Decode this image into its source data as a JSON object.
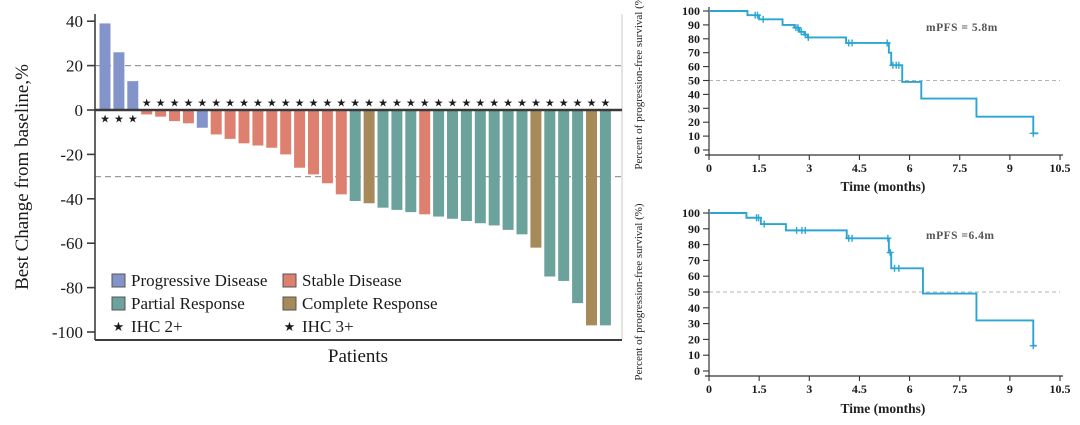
{
  "figure": {
    "background": "#ffffff",
    "colors": {
      "progressive_disease": "#8394CB",
      "stable_disease": "#DE8070",
      "partial_response": "#6BA29B",
      "complete_response": "#A78A59",
      "ihc2_star": "#0E8A3C",
      "ihc3_star": "#FFA81C",
      "km_line": "#2BA6D2",
      "axis": "#3d3d3d",
      "dashed_ref": "#999999"
    }
  },
  "chart_data": [
    {
      "type": "bar",
      "subtype": "waterfall",
      "title": "",
      "xlabel": "Patients",
      "ylabel": "Best Change from baseline,%",
      "ylim": [
        -100,
        45
      ],
      "yticks": [
        40,
        20,
        0,
        -20,
        -40,
        -60,
        -80,
        -100
      ],
      "reference_lines": [
        20,
        -30
      ],
      "grid": "dashed-reference-only",
      "legend_position": "inside-bottom-left",
      "legend": [
        {
          "label": "Progressive Disease",
          "swatch": "progressive_disease",
          "marker": "square"
        },
        {
          "label": "Stable Disease",
          "swatch": "stable_disease",
          "marker": "square"
        },
        {
          "label": "Partial Response",
          "swatch": "partial_response",
          "marker": "square"
        },
        {
          "label": "Complete Response",
          "swatch": "complete_response",
          "marker": "square"
        },
        {
          "label": "IHC 2+",
          "swatch": "ihc2_star",
          "marker": "star"
        },
        {
          "label": "IHC 3+",
          "swatch": "ihc3_star",
          "marker": "star"
        }
      ],
      "bars": [
        {
          "value": 39,
          "response": "progressive_disease",
          "ihc": "3+"
        },
        {
          "value": 26,
          "response": "progressive_disease",
          "ihc": "2+"
        },
        {
          "value": 13,
          "response": "progressive_disease",
          "ihc": "2+"
        },
        {
          "value": -2,
          "response": "stable_disease",
          "ihc": "2+"
        },
        {
          "value": -3,
          "response": "stable_disease",
          "ihc": "3+"
        },
        {
          "value": -5,
          "response": "stable_disease",
          "ihc": "3+"
        },
        {
          "value": -6,
          "response": "stable_disease",
          "ihc": "2+"
        },
        {
          "value": -8,
          "response": "progressive_disease",
          "ihc": "2+"
        },
        {
          "value": -11,
          "response": "stable_disease",
          "ihc": "2+"
        },
        {
          "value": -13,
          "response": "stable_disease",
          "ihc": "2+"
        },
        {
          "value": -15,
          "response": "stable_disease",
          "ihc": "2+"
        },
        {
          "value": -16,
          "response": "stable_disease",
          "ihc": "2+"
        },
        {
          "value": -17,
          "response": "stable_disease",
          "ihc": "2+"
        },
        {
          "value": -20,
          "response": "stable_disease",
          "ihc": "2+"
        },
        {
          "value": -26,
          "response": "stable_disease",
          "ihc": "2+"
        },
        {
          "value": -29,
          "response": "stable_disease",
          "ihc": "2+"
        },
        {
          "value": -33,
          "response": "stable_disease",
          "ihc": "2+"
        },
        {
          "value": -38,
          "response": "stable_disease",
          "ihc": "2+"
        },
        {
          "value": -41,
          "response": "partial_response",
          "ihc": "3+"
        },
        {
          "value": -42,
          "response": "complete_response",
          "ihc": "2+"
        },
        {
          "value": -44,
          "response": "partial_response",
          "ihc": "2+"
        },
        {
          "value": -45,
          "response": "partial_response",
          "ihc": "2+"
        },
        {
          "value": -46,
          "response": "partial_response",
          "ihc": "2+"
        },
        {
          "value": -47,
          "response": "stable_disease",
          "ihc": "2+"
        },
        {
          "value": -48,
          "response": "partial_response",
          "ihc": "2+"
        },
        {
          "value": -49,
          "response": "partial_response",
          "ihc": "2+"
        },
        {
          "value": -50,
          "response": "partial_response",
          "ihc": "2+"
        },
        {
          "value": -51,
          "response": "partial_response",
          "ihc": "3+"
        },
        {
          "value": -52,
          "response": "partial_response",
          "ihc": "3+"
        },
        {
          "value": -54,
          "response": "partial_response",
          "ihc": "2+"
        },
        {
          "value": -56,
          "response": "partial_response",
          "ihc": "2+"
        },
        {
          "value": -62,
          "response": "complete_response",
          "ihc": "2+"
        },
        {
          "value": -75,
          "response": "partial_response",
          "ihc": "3+"
        },
        {
          "value": -77,
          "response": "partial_response",
          "ihc": "3+"
        },
        {
          "value": -87,
          "response": "partial_response",
          "ihc": "2+"
        },
        {
          "value": -97,
          "response": "complete_response",
          "ihc": "2+"
        },
        {
          "value": -97,
          "response": "partial_response",
          "ihc": "3+"
        }
      ]
    },
    {
      "type": "line",
      "subtype": "kaplan-meier",
      "annotation": "mPFS = 5.8m",
      "xlabel": "Time (months)",
      "ylabel": "Percent of progression-free survival (%)",
      "xticks": [
        0,
        1.5,
        3,
        4.5,
        6,
        7.5,
        9,
        10.5
      ],
      "yticks": [
        0,
        10,
        20,
        30,
        40,
        50,
        60,
        70,
        80,
        90,
        100
      ],
      "xlim": [
        0,
        10.5
      ],
      "ylim": [
        0,
        100
      ],
      "median_reference": 50,
      "end_x": 9.85,
      "steps": [
        [
          0,
          100
        ],
        [
          1.15,
          97
        ],
        [
          1.5,
          94
        ],
        [
          2.2,
          90
        ],
        [
          2.55,
          88
        ],
        [
          2.7,
          85
        ],
        [
          2.85,
          83
        ],
        [
          2.95,
          81
        ],
        [
          4.1,
          77
        ],
        [
          5.38,
          70
        ],
        [
          5.45,
          61
        ],
        [
          5.78,
          49
        ],
        [
          6.35,
          37
        ],
        [
          8.0,
          24
        ],
        [
          9.7,
          12
        ]
      ],
      "censors": [
        [
          1.38,
          97
        ],
        [
          1.45,
          97
        ],
        [
          1.62,
          94
        ],
        [
          2.6,
          88
        ],
        [
          2.66,
          88
        ],
        [
          2.76,
          85
        ],
        [
          2.88,
          83
        ],
        [
          2.97,
          81
        ],
        [
          4.18,
          77
        ],
        [
          4.28,
          77
        ],
        [
          5.33,
          77
        ],
        [
          5.5,
          61
        ],
        [
          5.6,
          61
        ],
        [
          5.68,
          61
        ],
        [
          9.7,
          12
        ]
      ]
    },
    {
      "type": "line",
      "subtype": "kaplan-meier",
      "annotation": "mPFS =6.4m",
      "xlabel": "Time (months)",
      "ylabel": "Percent of progression-free survival (%)",
      "xticks": [
        0,
        1.5,
        3,
        4.5,
        6,
        7.5,
        9,
        10.5
      ],
      "yticks": [
        0,
        10,
        20,
        30,
        40,
        50,
        60,
        70,
        80,
        90,
        100
      ],
      "xlim": [
        0,
        10.5
      ],
      "ylim": [
        0,
        100
      ],
      "median_reference": 50,
      "end_x": 9.8,
      "steps": [
        [
          0,
          100
        ],
        [
          1.12,
          97
        ],
        [
          1.55,
          93
        ],
        [
          2.3,
          89
        ],
        [
          4.12,
          84
        ],
        [
          5.38,
          75
        ],
        [
          5.45,
          65
        ],
        [
          6.4,
          49
        ],
        [
          8.0,
          32
        ],
        [
          9.7,
          16
        ]
      ],
      "censors": [
        [
          1.42,
          97
        ],
        [
          1.48,
          97
        ],
        [
          1.65,
          93
        ],
        [
          2.62,
          89
        ],
        [
          2.78,
          89
        ],
        [
          2.88,
          89
        ],
        [
          4.18,
          84
        ],
        [
          4.28,
          84
        ],
        [
          5.35,
          84
        ],
        [
          5.42,
          75
        ],
        [
          5.55,
          65
        ],
        [
          5.68,
          65
        ],
        [
          9.7,
          16
        ]
      ]
    }
  ]
}
